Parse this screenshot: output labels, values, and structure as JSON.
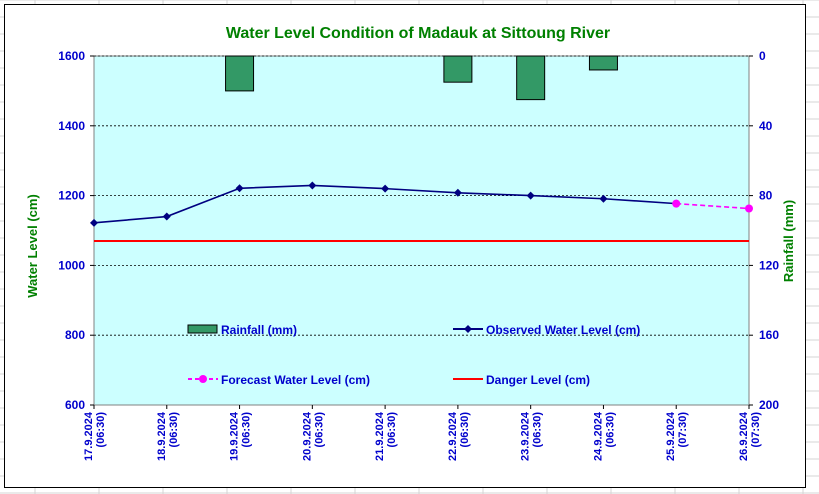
{
  "chart_data": {
    "type": "bar+line",
    "title": "Water Level Condition of Madauk at Sittoung River",
    "ylabel_left": "Water Level (cm)",
    "ylabel_right": "Rainfall (mm)",
    "ylim_left": [
      600,
      1600
    ],
    "yticks_left": [
      "600",
      "800",
      "1000",
      "1200",
      "1400",
      "1600"
    ],
    "ylim_right": [
      0,
      200
    ],
    "right_axis_inverted": true,
    "yticks_right": [
      "0",
      "40",
      "80",
      "120",
      "160",
      "200"
    ],
    "categories": [
      [
        "17.9.2024",
        "(06:30)"
      ],
      [
        "18.9.2024",
        "(06:30)"
      ],
      [
        "19.9.2024",
        "(06:30)"
      ],
      [
        "20.9.2024",
        "(06:30)"
      ],
      [
        "21.9.2024",
        "(06:30)"
      ],
      [
        "22.9.2024",
        "(06:30)"
      ],
      [
        "23.9.2024",
        "(06:30)"
      ],
      [
        "24.9.2024",
        "(06:30)"
      ],
      [
        "25.9.2024",
        "(07:30)"
      ],
      [
        "26.9.2024",
        "(07:30)"
      ]
    ],
    "rainfall": {
      "name": "Rainfall (mm)",
      "color": "#339966",
      "values": [
        0,
        0,
        20,
        0,
        0,
        15,
        25,
        8,
        0,
        0
      ]
    },
    "observed": {
      "name": "Observed Water Level (cm)",
      "color": "#000080",
      "values": [
        1122,
        1140,
        1221,
        1229,
        1220,
        1208,
        1200,
        1191,
        1177,
        null
      ]
    },
    "forecast": {
      "name": "Forecast Water Level (cm)",
      "color": "#ff00ff",
      "values": [
        null,
        null,
        null,
        null,
        null,
        null,
        null,
        null,
        1177,
        1163
      ]
    },
    "danger": {
      "name": "Danger Level (cm)",
      "color": "#ff0000",
      "value": 1070
    },
    "plot_background": "#ccffff",
    "grid": true
  }
}
